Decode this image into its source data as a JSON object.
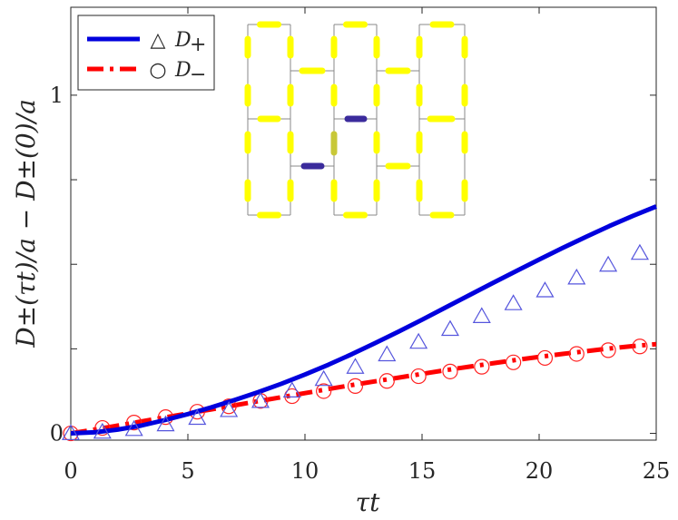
{
  "chart_data": {
    "type": "line",
    "xlabel": "τt",
    "ylabel": "D±(τt)/a − D±(0)/a",
    "xlim": [
      0,
      25
    ],
    "ylim": [
      -0.02,
      1.26
    ],
    "x_ticks": [
      0,
      5,
      10,
      15,
      20,
      25
    ],
    "y_ticks": [
      0,
      0.25,
      0.5,
      0.75,
      1
    ],
    "y_tick_labels": [
      "0",
      "",
      "",
      "",
      "1"
    ],
    "grid": false,
    "legend_position": "top-left",
    "series": [
      {
        "name": "D+",
        "kind": "line",
        "style": "solid",
        "color": "#0000dd",
        "x": [
          0,
          1,
          2,
          3,
          4,
          5,
          6,
          7,
          8,
          9,
          10,
          11,
          12,
          13,
          14,
          15,
          16,
          17,
          18,
          19,
          20,
          21,
          22,
          23,
          24,
          25
        ],
        "y": [
          0,
          0.003,
          0.011,
          0.023,
          0.039,
          0.057,
          0.077,
          0.099,
          0.122,
          0.147,
          0.174,
          0.203,
          0.234,
          0.267,
          0.301,
          0.336,
          0.372,
          0.408,
          0.444,
          0.479,
          0.514,
          0.548,
          0.581,
          0.613,
          0.643,
          0.671
        ]
      },
      {
        "name": "D+",
        "kind": "markers",
        "marker": "triangle",
        "color": "#5555dd",
        "x": [
          0,
          1.35,
          2.7,
          4.05,
          5.4,
          6.75,
          8.1,
          9.45,
          10.8,
          12.15,
          13.5,
          14.85,
          16.2,
          17.55,
          18.9,
          20.25,
          21.6,
          22.95,
          24.3
        ],
        "y": [
          0,
          0.004,
          0.012,
          0.026,
          0.045,
          0.068,
          0.095,
          0.126,
          0.16,
          0.196,
          0.233,
          0.27,
          0.308,
          0.346,
          0.384,
          0.422,
          0.46,
          0.498,
          0.533
        ]
      },
      {
        "name": "D−",
        "kind": "line",
        "style": "dashed",
        "color": "#ff0000",
        "x": [
          0,
          1,
          2,
          3,
          4,
          5,
          6,
          7,
          8,
          9,
          10,
          11,
          12,
          13,
          14,
          15,
          16,
          17,
          18,
          19,
          20,
          21,
          22,
          23,
          24,
          25
        ],
        "y": [
          0,
          0.011,
          0.023,
          0.035,
          0.047,
          0.059,
          0.071,
          0.083,
          0.095,
          0.107,
          0.119,
          0.131,
          0.143,
          0.154,
          0.165,
          0.176,
          0.187,
          0.197,
          0.207,
          0.217,
          0.226,
          0.235,
          0.243,
          0.251,
          0.258,
          0.264
        ]
      },
      {
        "name": "D−",
        "kind": "markers",
        "marker": "circle",
        "color": "#ff2222",
        "x": [
          0,
          1.35,
          2.7,
          4.05,
          5.4,
          6.75,
          8.1,
          9.45,
          10.8,
          12.15,
          13.5,
          14.85,
          16.2,
          17.55,
          18.9,
          20.25,
          21.6,
          22.95,
          24.3
        ],
        "y": [
          0,
          0.016,
          0.032,
          0.048,
          0.064,
          0.08,
          0.096,
          0.11,
          0.125,
          0.14,
          0.155,
          0.169,
          0.183,
          0.197,
          0.21,
          0.223,
          0.235,
          0.246,
          0.257
        ]
      }
    ],
    "legend": [
      {
        "line_color": "#0000dd",
        "line_style": "solid",
        "marker": "triangle",
        "symbol": "△",
        "label_main": "D",
        "label_sub": "+"
      },
      {
        "line_color": "#ff0000",
        "line_style": "dashed",
        "marker": "circle",
        "symbol": "○",
        "label_main": "D",
        "label_sub": "−"
      }
    ],
    "inset": {
      "description_colors": {
        "bond": "#ffff00",
        "bond_alt": "#c8c838",
        "highlight": "#3b2b9c",
        "grid_line": "#888888"
      }
    }
  }
}
